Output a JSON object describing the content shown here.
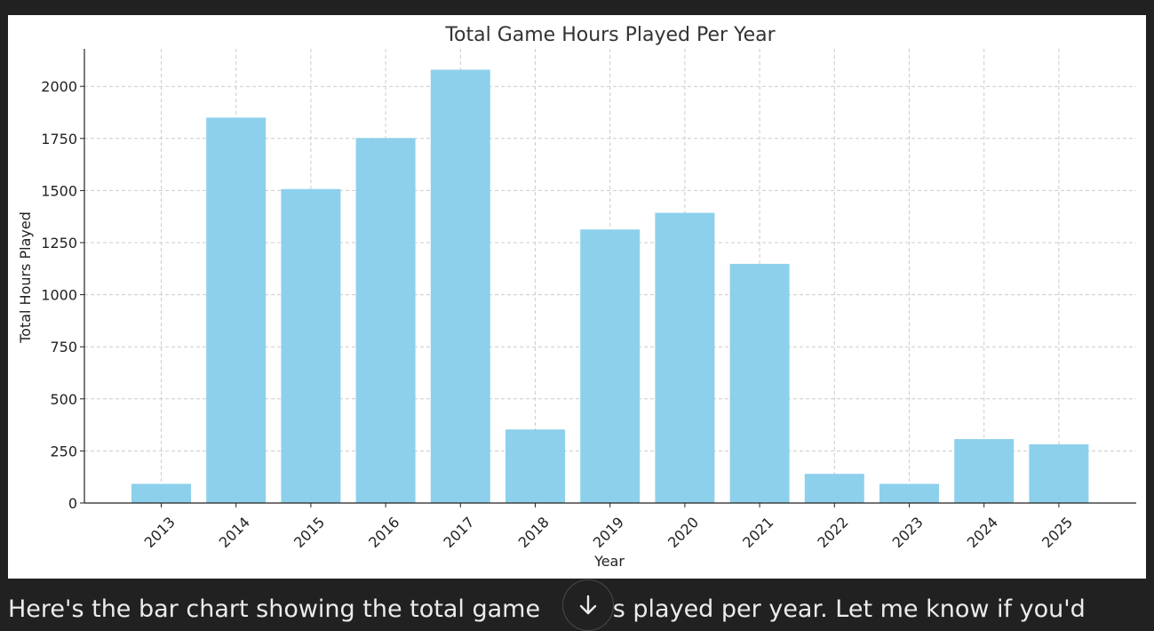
{
  "chart_data": {
    "type": "bar",
    "title": "Total Game Hours Played Per Year",
    "xlabel": "Year",
    "ylabel": "Total Hours Played",
    "categories": [
      "2013",
      "2014",
      "2015",
      "2016",
      "2017",
      "2018",
      "2019",
      "2020",
      "2021",
      "2022",
      "2023",
      "2024",
      "2025"
    ],
    "values": [
      92,
      1850,
      1507,
      1752,
      2080,
      353,
      1313,
      1393,
      1148,
      140,
      92,
      307,
      282
    ],
    "ylim": [
      0,
      2180
    ],
    "yticks": [
      0,
      250,
      500,
      750,
      1000,
      1250,
      1500,
      1750,
      2000
    ],
    "grid": true,
    "bar_color": "#87ceeb"
  },
  "message": {
    "text_before": "Here's the bar chart showing the total game ",
    "text_after": "rs played per year. Let me know if you'd"
  },
  "scroll_button": {
    "icon": "arrow-down-icon"
  }
}
